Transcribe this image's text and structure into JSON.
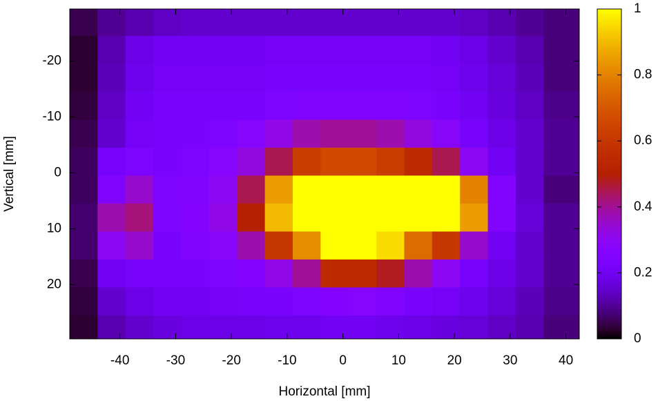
{
  "chart_data": {
    "type": "heatmap",
    "xlabel": "Horizontal [mm]",
    "ylabel": "Vertical [mm]",
    "x": [
      -46.5,
      -41.5,
      -36.5,
      -31.5,
      -26.5,
      -21.5,
      -16.5,
      -11.5,
      -6.5,
      -1.5,
      3.5,
      8.5,
      13.5,
      18.5,
      23.5,
      28.5,
      33.5,
      38.5
    ],
    "y": [
      -27,
      -22,
      -17,
      -12,
      -7,
      -2,
      3,
      8,
      13,
      18,
      23,
      28
    ],
    "z": [
      [
        0.05,
        0.1,
        0.12,
        0.14,
        0.15,
        0.15,
        0.15,
        0.15,
        0.15,
        0.15,
        0.15,
        0.15,
        0.15,
        0.15,
        0.14,
        0.12,
        0.1,
        0.08
      ],
      [
        0.03,
        0.12,
        0.18,
        0.2,
        0.2,
        0.2,
        0.2,
        0.21,
        0.21,
        0.21,
        0.21,
        0.21,
        0.21,
        0.2,
        0.18,
        0.15,
        0.12,
        0.08
      ],
      [
        0.03,
        0.13,
        0.19,
        0.21,
        0.21,
        0.21,
        0.21,
        0.22,
        0.22,
        0.22,
        0.22,
        0.22,
        0.22,
        0.21,
        0.19,
        0.16,
        0.13,
        0.08
      ],
      [
        0.04,
        0.14,
        0.2,
        0.22,
        0.22,
        0.22,
        0.23,
        0.24,
        0.25,
        0.25,
        0.25,
        0.25,
        0.24,
        0.23,
        0.2,
        0.17,
        0.14,
        0.09
      ],
      [
        0.05,
        0.15,
        0.21,
        0.22,
        0.23,
        0.24,
        0.27,
        0.32,
        0.38,
        0.4,
        0.4,
        0.38,
        0.33,
        0.28,
        0.22,
        0.18,
        0.15,
        0.1
      ],
      [
        0.06,
        0.22,
        0.24,
        0.23,
        0.24,
        0.27,
        0.33,
        0.45,
        0.62,
        0.66,
        0.66,
        0.62,
        0.55,
        0.45,
        0.3,
        0.2,
        0.15,
        0.1
      ],
      [
        0.06,
        0.25,
        0.35,
        0.24,
        0.25,
        0.3,
        0.45,
        0.85,
        1,
        1,
        1,
        1,
        1,
        1,
        0.8,
        0.25,
        0.15,
        0.08
      ],
      [
        0.07,
        0.38,
        0.42,
        0.24,
        0.26,
        0.32,
        0.5,
        0.9,
        1,
        1,
        1,
        1,
        1,
        1,
        0.85,
        0.25,
        0.16,
        0.1
      ],
      [
        0.07,
        0.3,
        0.35,
        0.23,
        0.25,
        0.28,
        0.38,
        0.6,
        0.82,
        1,
        1,
        0.95,
        0.75,
        0.6,
        0.35,
        0.2,
        0.15,
        0.1
      ],
      [
        0.05,
        0.2,
        0.22,
        0.22,
        0.23,
        0.24,
        0.26,
        0.32,
        0.4,
        0.55,
        0.55,
        0.48,
        0.38,
        0.3,
        0.22,
        0.18,
        0.15,
        0.1
      ],
      [
        0.04,
        0.15,
        0.18,
        0.2,
        0.2,
        0.21,
        0.22,
        0.23,
        0.24,
        0.26,
        0.27,
        0.25,
        0.23,
        0.21,
        0.19,
        0.16,
        0.13,
        0.09
      ],
      [
        0.03,
        0.12,
        0.15,
        0.17,
        0.18,
        0.18,
        0.18,
        0.19,
        0.19,
        0.2,
        0.2,
        0.19,
        0.18,
        0.17,
        0.16,
        0.14,
        0.12,
        0.08
      ]
    ],
    "xlim": [
      -49,
      42.4
    ],
    "xticks": [
      -40,
      -30,
      -20,
      -10,
      0,
      10,
      20,
      30,
      40
    ],
    "ylim": [
      -29.3,
      29.7
    ],
    "yticks": [
      -20,
      -10,
      0,
      10,
      20
    ],
    "y_inverted": true,
    "cblim": [
      0,
      1
    ],
    "cbticks": [
      0,
      0.2,
      0.4,
      0.6,
      0.8,
      1
    ]
  }
}
